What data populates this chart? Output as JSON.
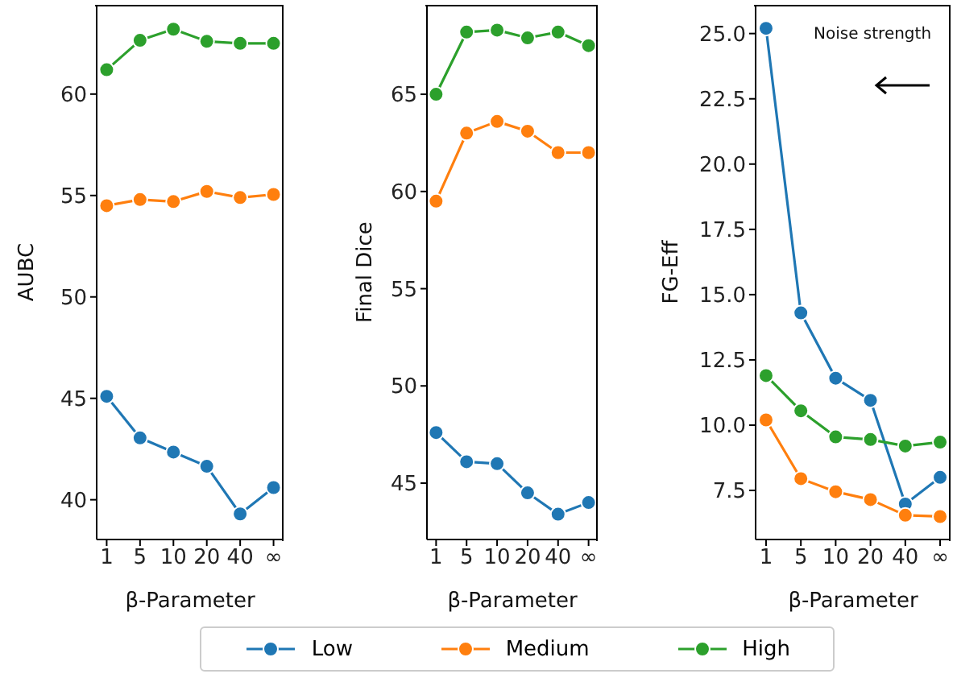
{
  "chart_data": [
    {
      "type": "line",
      "categories": [
        "1",
        "5",
        "10",
        "20",
        "40",
        "∞"
      ],
      "xlabel": "β-Parameter",
      "ylabel": "AUBC",
      "ylim": [
        38.04,
        64.4
      ],
      "yticks": [
        40,
        45,
        50,
        55,
        60
      ],
      "marker": "circle",
      "line_style": "solid",
      "legend": "bottom",
      "series": [
        {
          "name": "Low",
          "color": "#1f77b4",
          "values": [
            45.1,
            43.05,
            42.35,
            41.65,
            39.3,
            40.6
          ]
        },
        {
          "name": "Medium",
          "color": "#ff7f0e",
          "values": [
            54.5,
            54.8,
            54.7,
            55.2,
            54.9,
            55.05
          ]
        },
        {
          "name": "High",
          "color": "#2ca02c",
          "values": [
            61.2,
            62.65,
            63.2,
            62.6,
            62.5,
            62.5
          ]
        }
      ]
    },
    {
      "type": "line",
      "categories": [
        "1",
        "5",
        "10",
        "20",
        "40",
        "∞"
      ],
      "xlabel": "β-Parameter",
      "ylabel": "Final Dice",
      "ylim": [
        42.1,
        69.6
      ],
      "yticks": [
        45,
        50,
        55,
        60,
        65
      ],
      "marker": "circle",
      "line_style": "solid",
      "series": [
        {
          "color": "#1f77b4",
          "values": [
            47.6,
            46.1,
            46.0,
            44.5,
            43.4,
            44.0
          ]
        },
        {
          "color": "#ff7f0e",
          "values": [
            59.5,
            63.0,
            63.6,
            63.1,
            62.0,
            62.0
          ]
        },
        {
          "color": "#2ca02c",
          "values": [
            65.0,
            68.2,
            68.3,
            67.9,
            68.2,
            67.5
          ]
        }
      ]
    },
    {
      "type": "line",
      "categories": [
        "1",
        "5",
        "10",
        "20",
        "40",
        "∞"
      ],
      "xlabel": "β-Parameter",
      "ylabel": "FG-Eff",
      "ylim": [
        5.62,
        26.1
      ],
      "yticks": [
        {
          "value": 7.5,
          "label": "7.5"
        },
        {
          "value": 10,
          "label": "10.0"
        },
        {
          "value": 12.5,
          "label": "12.5"
        },
        {
          "value": 15,
          "label": "15.0"
        },
        {
          "value": 17.5,
          "label": "17.5"
        },
        {
          "value": 20,
          "label": "20.0"
        },
        {
          "value": 22.5,
          "label": "22.5"
        },
        {
          "value": 25,
          "label": "25.0"
        }
      ],
      "marker": "circle",
      "line_style": "solid",
      "annotations": [
        "Noise strength"
      ],
      "series": [
        {
          "color": "#1f77b4",
          "values": [
            25.2,
            14.3,
            11.8,
            10.95,
            6.98,
            8.0
          ]
        },
        {
          "color": "#ff7f0e",
          "values": [
            10.2,
            7.95,
            7.45,
            7.15,
            6.55,
            6.5
          ]
        },
        {
          "color": "#2ca02c",
          "values": [
            11.9,
            10.55,
            9.55,
            9.45,
            9.2,
            9.35
          ]
        }
      ]
    }
  ]
}
